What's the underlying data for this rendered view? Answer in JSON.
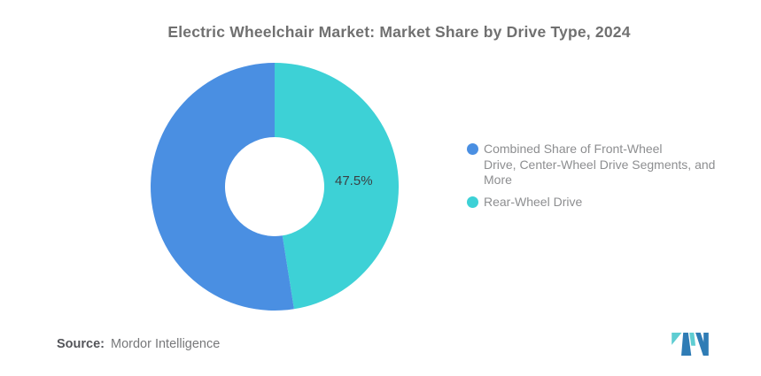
{
  "header": {
    "title": "Electric Wheelchair Market: Market Share by Drive Type, 2024"
  },
  "chart_data": {
    "type": "pie",
    "subtype": "donut",
    "title": "Electric Wheelchair Market: Market Share by Drive Type, 2024",
    "slices": [
      {
        "label": "Rear-Wheel Drive",
        "value": 47.5,
        "color": "#3DD1D6",
        "data_label": "47.5%"
      },
      {
        "label": "Combined Share of Front-Wheel Drive, Center-Wheel Drive Segments, and More",
        "value": 52.5,
        "color": "#4A8FE2",
        "data_label": ""
      }
    ],
    "start_angle_deg": 0,
    "direction": "clockwise",
    "donut_hole_ratio": 0.4,
    "legend_position": "right",
    "grid": false
  },
  "legend": {
    "items": [
      {
        "label": "Combined Share of Front-Wheel\nDrive, Center-Wheel Drive Segments, and\nMore",
        "color": "#4A8FE2"
      },
      {
        "label": "Rear-Wheel Drive",
        "color": "#3DD1D6"
      }
    ]
  },
  "source": {
    "label": "Source:",
    "value": "Mordor Intelligence"
  },
  "logo": {
    "name": "mordor-intelligence-logo",
    "teal": "#5ECDD2",
    "blue": "#2F7CB5"
  }
}
